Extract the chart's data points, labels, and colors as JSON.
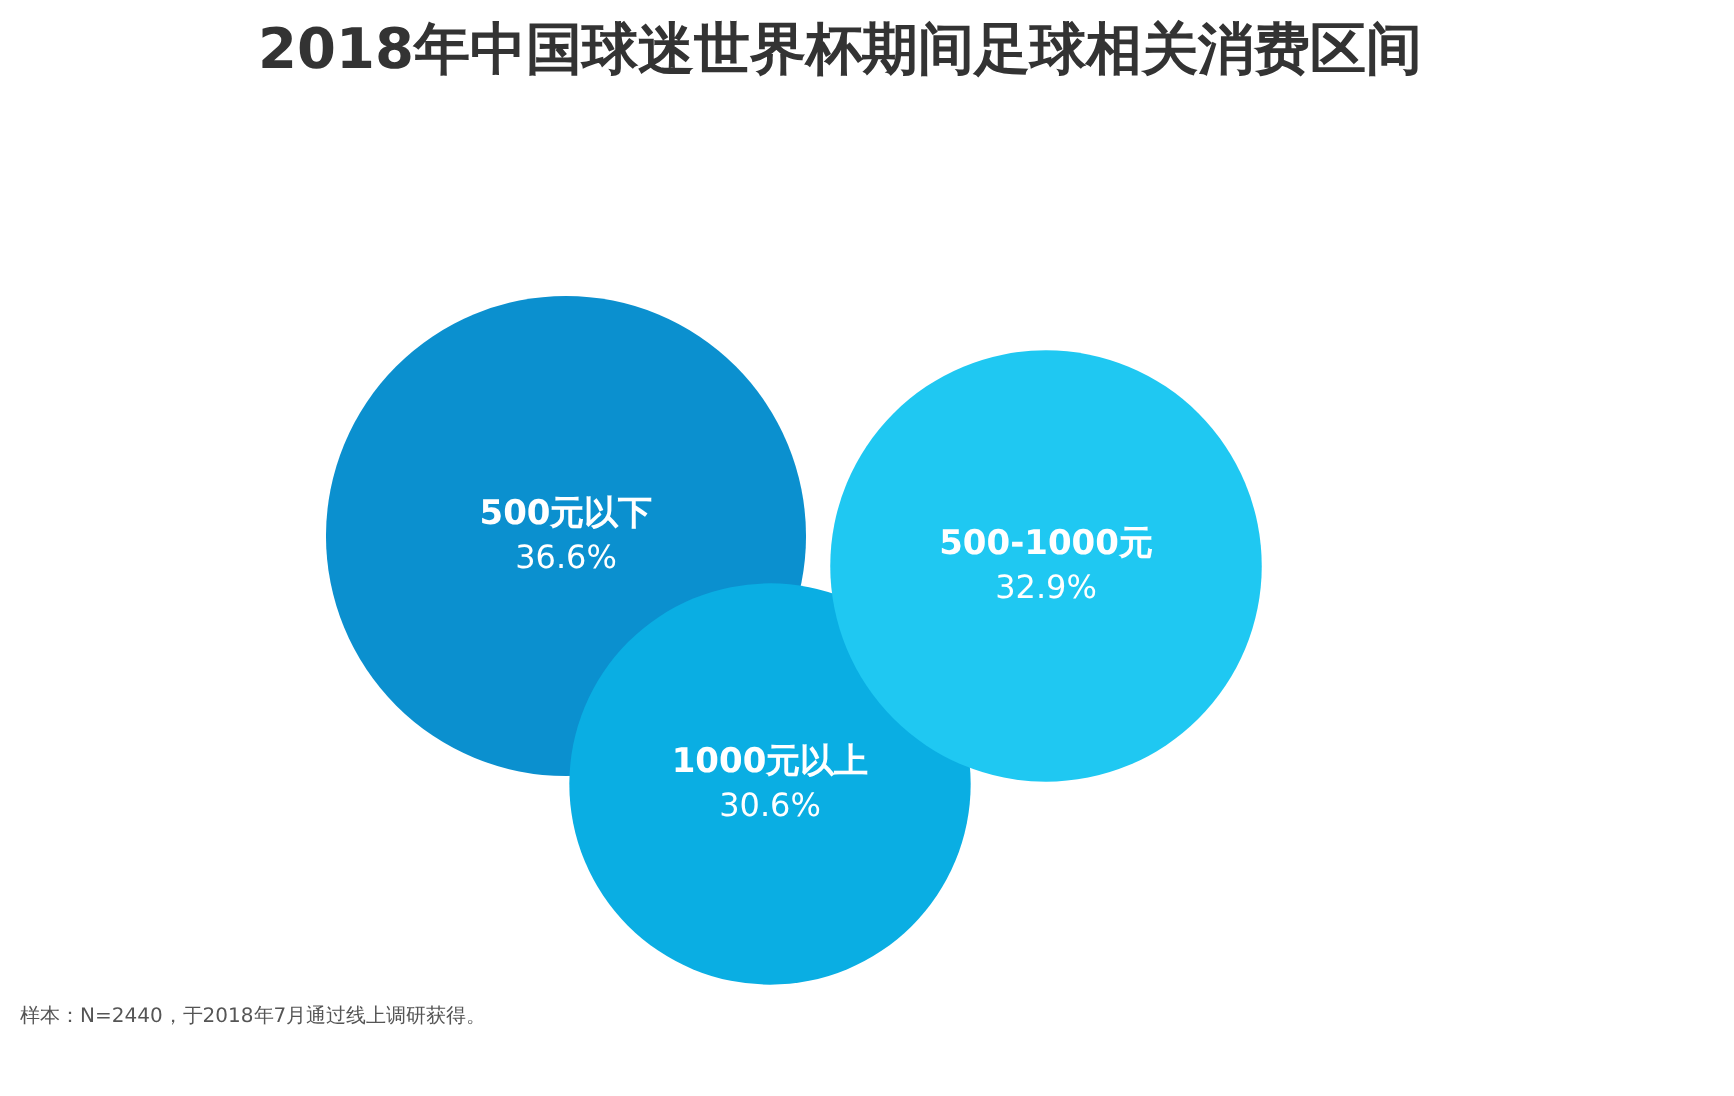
{
  "chart_data": {
    "type": "other",
    "title": "2018年中国球迷世界杯期间足球相关消费区间",
    "categories": [
      "500元以下",
      "500-1000元",
      "1000元以上"
    ],
    "values": [
      36.6,
      32.9,
      30.6
    ],
    "value_labels": [
      "36.6%",
      "32.9%",
      "30.6%"
    ],
    "colors": [
      "#0b90cf",
      "#1fc8f2",
      "#0aaee3"
    ],
    "annotations": [
      "样本：N=2440，于2018年7月通过线上调研获得。"
    ]
  }
}
